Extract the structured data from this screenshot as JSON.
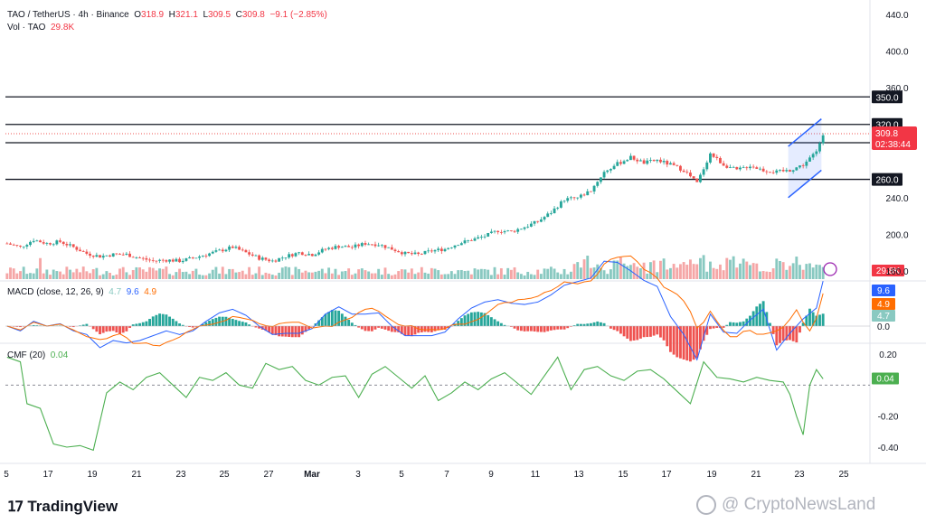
{
  "header": {
    "symbol": "TAO / TetherUS · 4h · Binance",
    "o_label": "O",
    "o": "318.9",
    "h_label": "H",
    "h": "321.1",
    "l_label": "L",
    "l": "309.5",
    "c_label": "C",
    "c": "309.8",
    "change": "−9.1 (−2.85%)",
    "vol_label": "Vol · TAO",
    "vol": "29.8K"
  },
  "macd_legend": {
    "label": "MACD (close, 12, 26, 9)",
    "hist": "4.7",
    "macd": "9.6",
    "signal": "4.9"
  },
  "cmf_legend": {
    "label": "CMF (20)",
    "value": "0.04"
  },
  "branding": {
    "logo": "TradingView",
    "watermark": "@ CryptoNewsLand"
  },
  "colors": {
    "up": "#26a69a",
    "down": "#ef5350",
    "macd": "#2962ff",
    "signal": "#ff6d00",
    "cmf": "#4caf50",
    "level": "#131722",
    "price_badge": "#f23645"
  },
  "chart_data": {
    "type": "candlestick",
    "symbol": "TAO/USDT",
    "interval": "4h",
    "price_axis_ticks": [
      440.0,
      400.0,
      360.0,
      240.0,
      200.0,
      160.0
    ],
    "ylim": [
      160,
      440
    ],
    "x_tick_labels": [
      "5",
      "17",
      "19",
      "21",
      "23",
      "25",
      "27",
      "Mar",
      "3",
      "5",
      "7",
      "9",
      "11",
      "13",
      "15",
      "17",
      "19",
      "21",
      "23",
      "25"
    ],
    "horizontal_levels": [
      {
        "value": 350.0,
        "label": "350.0"
      },
      {
        "value": 320.0,
        "label": "320.0"
      },
      {
        "value": 300.0,
        "label": "300.0"
      },
      {
        "value": 260.0,
        "label": "260.0"
      }
    ],
    "last_price": {
      "value": 309.8,
      "label": "309.8",
      "countdown": "02:38:44"
    },
    "volume_badge": "29.8K",
    "price_path": [
      [
        0,
        190
      ],
      [
        4,
        186
      ],
      [
        8,
        194
      ],
      [
        12,
        190
      ],
      [
        16,
        192
      ],
      [
        20,
        186
      ],
      [
        24,
        179
      ],
      [
        28,
        176
      ],
      [
        32,
        178
      ],
      [
        36,
        178
      ],
      [
        40,
        174
      ],
      [
        44,
        171
      ],
      [
        48,
        172
      ],
      [
        52,
        171
      ],
      [
        56,
        174
      ],
      [
        60,
        178
      ],
      [
        64,
        182
      ],
      [
        68,
        186
      ],
      [
        72,
        180
      ],
      [
        76,
        174
      ],
      [
        80,
        171
      ],
      [
        84,
        176
      ],
      [
        88,
        180
      ],
      [
        92,
        178
      ],
      [
        96,
        184
      ],
      [
        100,
        187
      ],
      [
        104,
        186
      ],
      [
        108,
        190
      ],
      [
        112,
        189
      ],
      [
        116,
        184
      ],
      [
        120,
        179
      ],
      [
        124,
        178
      ],
      [
        128,
        182
      ],
      [
        132,
        184
      ],
      [
        136,
        190
      ],
      [
        140,
        194
      ],
      [
        144,
        198
      ],
      [
        148,
        204
      ],
      [
        152,
        203
      ],
      [
        156,
        208
      ],
      [
        160,
        214
      ],
      [
        164,
        224
      ],
      [
        168,
        238
      ],
      [
        172,
        240
      ],
      [
        176,
        248
      ],
      [
        180,
        268
      ],
      [
        184,
        277
      ],
      [
        188,
        284
      ],
      [
        192,
        278
      ],
      [
        196,
        281
      ],
      [
        200,
        276
      ],
      [
        204,
        270
      ],
      [
        208,
        256
      ],
      [
        212,
        288
      ],
      [
        216,
        276
      ],
      [
        220,
        270
      ],
      [
        224,
        275
      ],
      [
        228,
        270
      ],
      [
        232,
        268
      ],
      [
        236,
        270
      ],
      [
        240,
        276
      ],
      [
        244,
        290
      ],
      [
        246,
        310
      ]
    ],
    "channel": {
      "upper": [
        [
          236,
          296
        ],
        [
          246,
          326
        ]
      ],
      "lower": [
        [
          236,
          240
        ],
        [
          246,
          270
        ]
      ]
    },
    "volume_axis_label": "29.8K",
    "macd": {
      "axis_ticks": [
        9.6,
        4.9,
        4.7,
        0.0
      ],
      "macd_value": 9.6,
      "signal_value": 4.9,
      "hist_value": 4.7
    },
    "cmf": {
      "axis_ticks": [
        0.2,
        0.04,
        -0.2,
        -0.4
      ],
      "ylim": [
        -0.45,
        0.25
      ],
      "last_value": 0.04,
      "path": [
        [
          0,
          0.18
        ],
        [
          4,
          0.15
        ],
        [
          6,
          -0.12
        ],
        [
          10,
          -0.15
        ],
        [
          14,
          -0.38
        ],
        [
          18,
          -0.4
        ],
        [
          22,
          -0.39
        ],
        [
          26,
          -0.42
        ],
        [
          30,
          -0.05
        ],
        [
          34,
          0.02
        ],
        [
          38,
          -0.03
        ],
        [
          42,
          0.05
        ],
        [
          46,
          0.08
        ],
        [
          50,
          0.0
        ],
        [
          54,
          -0.08
        ],
        [
          58,
          0.05
        ],
        [
          62,
          0.03
        ],
        [
          66,
          0.08
        ],
        [
          70,
          0.0
        ],
        [
          74,
          -0.02
        ],
        [
          78,
          0.14
        ],
        [
          82,
          0.1
        ],
        [
          86,
          0.12
        ],
        [
          90,
          0.03
        ],
        [
          94,
          0.0
        ],
        [
          98,
          0.05
        ],
        [
          102,
          0.06
        ],
        [
          106,
          -0.08
        ],
        [
          110,
          0.07
        ],
        [
          114,
          0.12
        ],
        [
          118,
          0.05
        ],
        [
          122,
          -0.02
        ],
        [
          126,
          0.06
        ],
        [
          130,
          -0.1
        ],
        [
          134,
          -0.05
        ],
        [
          138,
          0.02
        ],
        [
          142,
          -0.03
        ],
        [
          146,
          0.04
        ],
        [
          150,
          0.08
        ],
        [
          154,
          0.01
        ],
        [
          158,
          -0.06
        ],
        [
          162,
          0.06
        ],
        [
          166,
          0.18
        ],
        [
          170,
          -0.03
        ],
        [
          174,
          0.1
        ],
        [
          178,
          0.12
        ],
        [
          182,
          0.06
        ],
        [
          186,
          0.03
        ],
        [
          190,
          0.09
        ],
        [
          194,
          0.1
        ],
        [
          198,
          0.04
        ],
        [
          202,
          -0.04
        ],
        [
          206,
          -0.12
        ],
        [
          210,
          0.15
        ],
        [
          214,
          0.05
        ],
        [
          218,
          0.04
        ],
        [
          222,
          0.02
        ],
        [
          226,
          0.05
        ],
        [
          230,
          0.03
        ],
        [
          234,
          0.02
        ],
        [
          236,
          -0.06
        ],
        [
          238,
          -0.2
        ],
        [
          240,
          -0.32
        ],
        [
          242,
          0.0
        ],
        [
          244,
          0.1
        ],
        [
          246,
          0.04
        ]
      ]
    }
  }
}
